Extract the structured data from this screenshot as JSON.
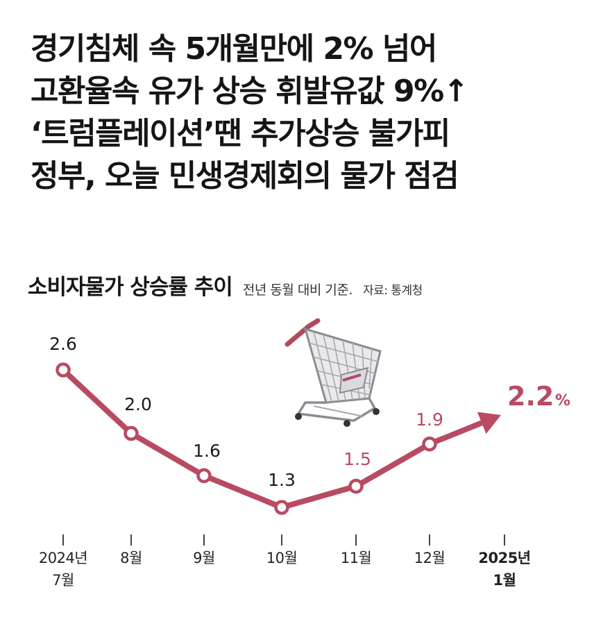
{
  "headline": [
    "경기침체 속 5개월만에 2% 넘어",
    "고환율속 유가 상승 휘발유값 9%↑",
    "‘트럼플레이션’땐 추가상승 불가피",
    "정부, 오늘 민생경제회의 물가 점검"
  ],
  "chart_header": {
    "subtitle": "전년 동월 대비 기준.",
    "source": "자료: 통계청"
  },
  "colors": {
    "accent": "#b84a62",
    "text": "#151515",
    "tick": "#444444"
  },
  "icons": [
    "shopping-cart-icon",
    "trend-arrow-icon"
  ],
  "chart_data": {
    "type": "line",
    "title": "소비자물가 상승률 추이",
    "xlabel": "",
    "ylabel": "",
    "ylim": [
      1.0,
      2.8
    ],
    "grid": false,
    "legend": "none",
    "categories": [
      [
        "2024년",
        "7월"
      ],
      [
        "8월"
      ],
      [
        "9월"
      ],
      [
        "10월"
      ],
      [
        "11월"
      ],
      [
        "12월"
      ],
      [
        "2025년",
        "1월"
      ]
    ],
    "series": [
      {
        "values": [
          2.6,
          2.0,
          1.6,
          1.3,
          1.5,
          1.9,
          2.2
        ],
        "labels": [
          "2.6",
          "2.0",
          "1.6",
          "1.3",
          "1.5",
          "1.9",
          "2.2"
        ]
      }
    ],
    "highlight_unit": "%"
  }
}
